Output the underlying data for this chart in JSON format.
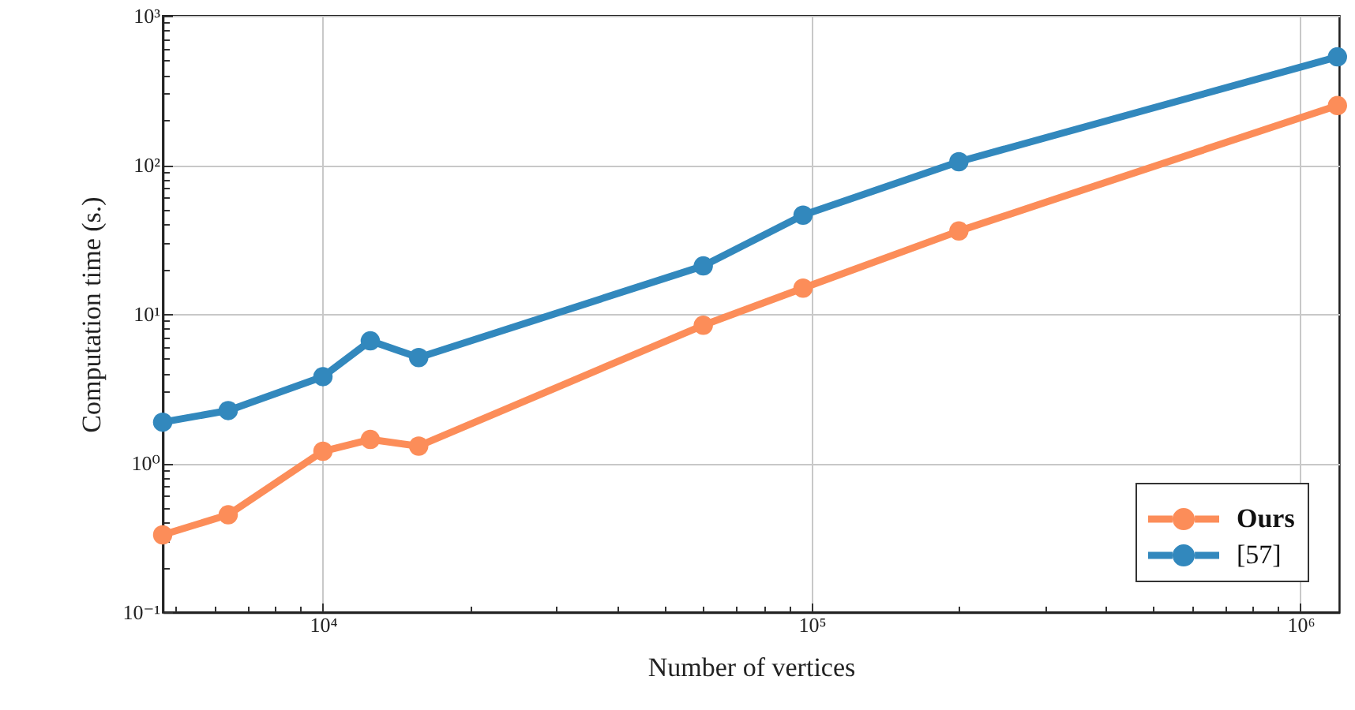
{
  "chart_data": {
    "type": "line",
    "xlabel": "Number of vertices",
    "ylabel": "Computation time (s.)",
    "x": [
      4700,
      6400,
      10000,
      12500,
      15700,
      60000,
      96000,
      200000,
      1190000
    ],
    "series": [
      {
        "name": "Ours",
        "color": "#fc8d59",
        "values": [
          0.33,
          0.45,
          1.2,
          1.44,
          1.3,
          8.4,
          14.9,
          36,
          250
        ]
      },
      {
        "name": "[57]",
        "color": "#3288bd",
        "values": [
          1.88,
          2.25,
          3.8,
          6.6,
          5.1,
          21,
          46,
          105,
          530
        ]
      }
    ],
    "log": "xy",
    "xlim": [
      4700,
      1200000
    ],
    "xticks": [
      {
        "value": 5000,
        "label": null
      },
      {
        "value": 6000,
        "label": null
      },
      {
        "value": 7000,
        "label": null
      },
      {
        "value": 8000,
        "label": null
      },
      {
        "value": 9000,
        "label": null
      },
      {
        "value": 10000,
        "label": "10⁴"
      },
      {
        "value": 20000,
        "label": null
      },
      {
        "value": 30000,
        "label": null
      },
      {
        "value": 40000,
        "label": null
      },
      {
        "value": 50000,
        "label": null
      },
      {
        "value": 60000,
        "label": null
      },
      {
        "value": 70000,
        "label": null
      },
      {
        "value": 80000,
        "label": null
      },
      {
        "value": 90000,
        "label": null
      },
      {
        "value": 100000,
        "label": "10⁵"
      },
      {
        "value": 200000,
        "label": null
      },
      {
        "value": 300000,
        "label": null
      },
      {
        "value": 400000,
        "label": null
      },
      {
        "value": 500000,
        "label": null
      },
      {
        "value": 600000,
        "label": null
      },
      {
        "value": 700000,
        "label": null
      },
      {
        "value": 800000,
        "label": null
      },
      {
        "value": 900000,
        "label": null
      },
      {
        "value": 1000000,
        "label": "10⁶"
      }
    ],
    "ylim": [
      0.1,
      1000
    ],
    "yticks": [
      {
        "value": 0.1,
        "label": "10⁻¹"
      },
      {
        "value": 0.2,
        "label": null
      },
      {
        "value": 0.3,
        "label": null
      },
      {
        "value": 0.4,
        "label": null
      },
      {
        "value": 0.5,
        "label": null
      },
      {
        "value": 0.6,
        "label": null
      },
      {
        "value": 0.7,
        "label": null
      },
      {
        "value": 0.8,
        "label": null
      },
      {
        "value": 0.9,
        "label": null
      },
      {
        "value": 1,
        "label": "10⁰"
      },
      {
        "value": 2,
        "label": null
      },
      {
        "value": 3,
        "label": null
      },
      {
        "value": 4,
        "label": null
      },
      {
        "value": 5,
        "label": null
      },
      {
        "value": 6,
        "label": null
      },
      {
        "value": 7,
        "label": null
      },
      {
        "value": 8,
        "label": null
      },
      {
        "value": 9,
        "label": null
      },
      {
        "value": 10,
        "label": "10¹"
      },
      {
        "value": 20,
        "label": null
      },
      {
        "value": 30,
        "label": null
      },
      {
        "value": 40,
        "label": null
      },
      {
        "value": 50,
        "label": null
      },
      {
        "value": 60,
        "label": null
      },
      {
        "value": 70,
        "label": null
      },
      {
        "value": 80,
        "label": null
      },
      {
        "value": 90,
        "label": null
      },
      {
        "value": 100,
        "label": "10²"
      },
      {
        "value": 200,
        "label": null
      },
      {
        "value": 300,
        "label": null
      },
      {
        "value": 400,
        "label": null
      },
      {
        "value": 500,
        "label": null
      },
      {
        "value": 600,
        "label": null
      },
      {
        "value": 700,
        "label": null
      },
      {
        "value": 800,
        "label": null
      },
      {
        "value": 900,
        "label": null
      },
      {
        "value": 1000,
        "label": "10³"
      }
    ],
    "grid": true,
    "legend": "bottom right",
    "marker": "circle",
    "line_style": "solid"
  }
}
